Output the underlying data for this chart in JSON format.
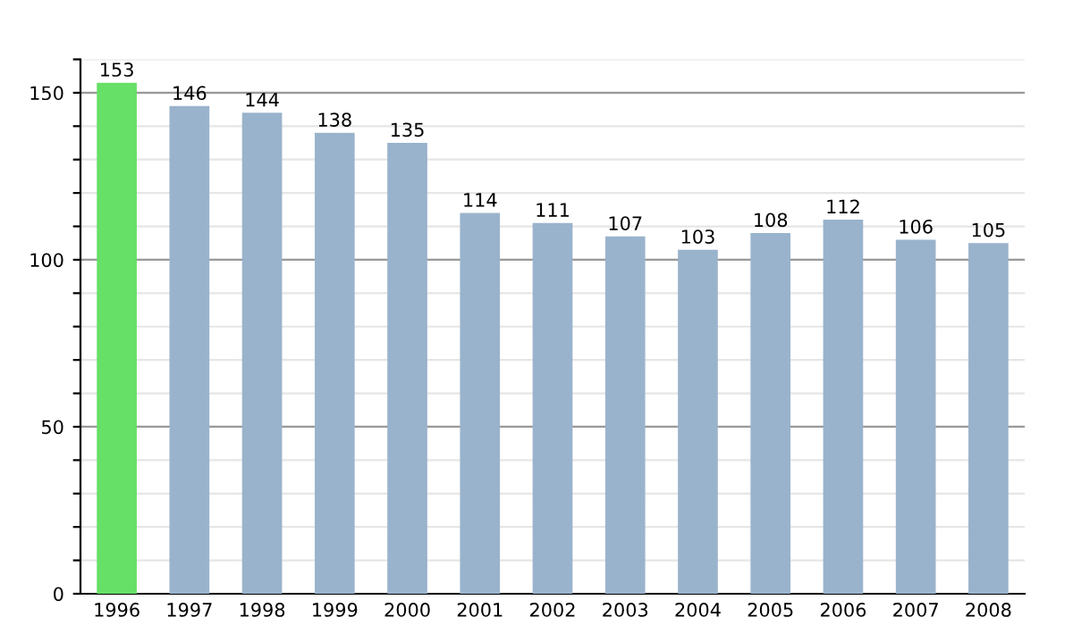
{
  "chart_data": {
    "type": "bar",
    "categories": [
      "1996",
      "1997",
      "1998",
      "1999",
      "2000",
      "2001",
      "2002",
      "2003",
      "2004",
      "2005",
      "2006",
      "2007",
      "2008"
    ],
    "values": [
      153,
      146,
      144,
      138,
      135,
      114,
      111,
      107,
      103,
      108,
      112,
      106,
      105
    ],
    "colors": [
      "#66e066",
      "#9ab3cc",
      "#9ab3cc",
      "#9ab3cc",
      "#9ab3cc",
      "#9ab3cc",
      "#9ab3cc",
      "#9ab3cc",
      "#9ab3cc",
      "#9ab3cc",
      "#9ab3cc",
      "#9ab3cc",
      "#9ab3cc"
    ],
    "ylim": [
      0,
      160
    ],
    "yticks": [
      0,
      {
        "value": 10,
        "label": null
      },
      {
        "value": 20,
        "label": null
      },
      {
        "value": 30,
        "label": null
      },
      {
        "value": 40,
        "label": null
      },
      50,
      {
        "value": 60,
        "label": null
      },
      {
        "value": 70,
        "label": null
      },
      {
        "value": 80,
        "label": null
      },
      {
        "value": 90,
        "label": null
      },
      100,
      {
        "value": 110,
        "label": null
      },
      {
        "value": 120,
        "label": null
      },
      {
        "value": 130,
        "label": null
      },
      {
        "value": 140,
        "label": null
      },
      150,
      {
        "value": 160,
        "label": null
      }
    ],
    "grid": "y",
    "data_labels": true,
    "legend": false
  }
}
